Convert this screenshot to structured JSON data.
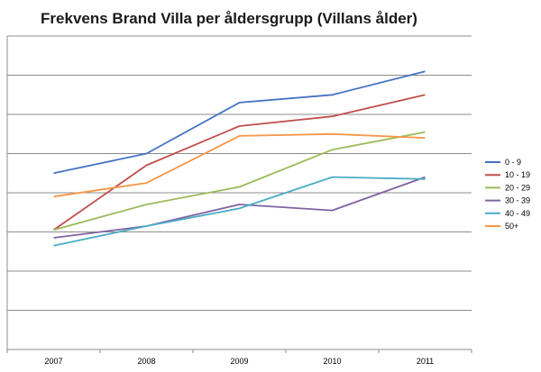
{
  "chart_data": {
    "type": "line",
    "title": "Frekvens Brand Villa per åldersgrupp (Villans ålder)",
    "xlabel": "",
    "ylabel": "",
    "categories": [
      "2007",
      "2008",
      "2009",
      "2010",
      "2011"
    ],
    "ylim": [
      0,
      8
    ],
    "grid": true,
    "yticks_labeled": false,
    "legend": "right",
    "series": [
      {
        "name": "0 - 9",
        "color": "#4472C4",
        "values": [
          4.5,
          5.0,
          6.3,
          6.5,
          7.1
        ]
      },
      {
        "name": "10 - 19",
        "color": "#C0504D",
        "values": [
          3.05,
          4.7,
          5.7,
          5.95,
          6.5
        ]
      },
      {
        "name": "20 - 29",
        "color": "#9BBB59",
        "values": [
          3.05,
          3.7,
          4.15,
          5.1,
          5.55
        ]
      },
      {
        "name": "30 - 39",
        "color": "#8064A2",
        "values": [
          2.85,
          3.15,
          3.7,
          3.55,
          4.4
        ]
      },
      {
        "name": "40 - 49",
        "color": "#4BACC6",
        "values": [
          2.65,
          3.15,
          3.6,
          4.4,
          4.35
        ]
      },
      {
        "name": "50+",
        "color": "#F79646",
        "values": [
          3.9,
          4.25,
          5.45,
          5.5,
          5.4
        ]
      }
    ]
  }
}
